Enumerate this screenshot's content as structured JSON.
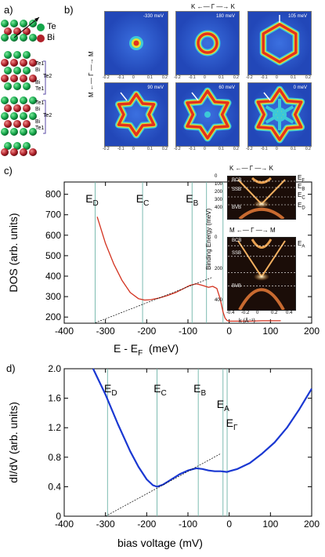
{
  "panel_labels": {
    "a": "a)",
    "b": "b)",
    "c": "c)",
    "d": "d)"
  },
  "crystal": {
    "legend": [
      {
        "label": "Te",
        "color": "#14a64a"
      },
      {
        "label": "Bi",
        "color": "#b0212a"
      }
    ],
    "layer_groups": [
      [
        "Te1",
        "Bi",
        "Te2",
        "Bi",
        "Te1"
      ],
      [
        "Te1",
        "Bi",
        "Te2",
        "Bi",
        "Te1"
      ]
    ]
  },
  "maps": {
    "axis_top": {
      "left": "K",
      "center": "Γ",
      "right": "K"
    },
    "axis_left": {
      "top": "M",
      "center": "Γ",
      "bottom": "M"
    },
    "tiles": [
      {
        "energy": "-330 meV"
      },
      {
        "energy": "180 meV"
      },
      {
        "energy": "105 meV"
      },
      {
        "energy": "90 meV"
      },
      {
        "energy": "60 meV"
      },
      {
        "energy": "0 meV"
      }
    ],
    "ticks": [
      "-0.2",
      "-0.1",
      "0",
      "0.1",
      "0.2"
    ]
  },
  "arpes": {
    "top": {
      "axis_left": "K",
      "axis_center": "Γ",
      "axis_right": "K",
      "labels": [
        "BCB",
        "SSB",
        "BVB"
      ],
      "energies": [
        "E_F",
        "E_B",
        "E_C",
        "E_D"
      ],
      "y_ticks": [
        "0",
        "100",
        "200",
        "300",
        "400"
      ]
    },
    "bottom": {
      "axis_left": "M",
      "axis_center": "Γ",
      "axis_right": "M",
      "labels": [
        "BCB",
        "SSB",
        "BVB"
      ],
      "energies": [
        "E_A"
      ],
      "y_ticks": [
        "0",
        "200",
        "400"
      ],
      "x_ticks": [
        "-0.4",
        "-0.2",
        "0",
        "0.2",
        "0.4"
      ],
      "xlabel": "k (Å⁻¹)"
    },
    "ylabel": "Binding Energy (meV)"
  },
  "chart_data": [
    {
      "type": "line",
      "title": "",
      "xlabel": "E - E_F  (meV)",
      "ylabel": "DOS (arb. units)",
      "xlim": [
        -400,
        200
      ],
      "ylim": [
        170,
        860
      ],
      "x_ticks": [
        "-400",
        "-300",
        "-200",
        "-100",
        "0",
        "100",
        "200"
      ],
      "y_ticks": [
        "200",
        "300",
        "400",
        "500",
        "600",
        "700",
        "800"
      ],
      "vlines": [
        {
          "label": "E_D",
          "x": -325
        },
        {
          "label": "E_C",
          "x": -210
        },
        {
          "label": "E_B",
          "x": -90
        },
        {
          "label": "",
          "x": -55
        },
        {
          "label": "",
          "x": -15
        }
      ],
      "series": [
        {
          "color": "#d3321f",
          "x": [
            -320,
            -300,
            -280,
            -260,
            -240,
            -220,
            -205,
            -190,
            -170,
            -150,
            -130,
            -110,
            -95,
            -80,
            -65,
            -50,
            -40,
            -30,
            -22,
            -15,
            -10,
            -5,
            0,
            20,
            50,
            80,
            110,
            125
          ],
          "y": [
            690,
            560,
            460,
            380,
            320,
            290,
            283,
            285,
            293,
            305,
            320,
            340,
            355,
            363,
            355,
            345,
            350,
            340,
            290,
            225,
            195,
            183,
            180,
            180,
            180,
            182,
            182,
            182
          ]
        },
        {
          "style": "dashed",
          "x": [
            -325,
            -40
          ],
          "y": [
            172,
            395
          ]
        }
      ]
    },
    {
      "type": "line",
      "title": "",
      "xlabel": "bias voltage (mV)",
      "ylabel": "dI/dV (arb. units)",
      "xlim": [
        -400,
        200
      ],
      "ylim": [
        0,
        2.0
      ],
      "x_ticks": [
        "-400",
        "-300",
        "-200",
        "-100",
        "0",
        "100",
        "200"
      ],
      "y_ticks": [
        "0",
        "0.4",
        "0.8",
        "1.2",
        "1.6",
        "2.0"
      ],
      "vlines": [
        {
          "label": "E_D",
          "x": -295
        },
        {
          "label": "E_C",
          "x": -175
        },
        {
          "label": "E_B",
          "x": -75
        },
        {
          "label": "E_A",
          "x": -15
        },
        {
          "label": "E_Γ",
          "x": -5
        }
      ],
      "series": [
        {
          "color": "#1a38d2",
          "x": [
            -330,
            -300,
            -270,
            -240,
            -220,
            -200,
            -185,
            -175,
            -160,
            -140,
            -120,
            -100,
            -80,
            -65,
            -50,
            -35,
            -20,
            -5,
            0,
            20,
            50,
            80,
            110,
            140,
            170,
            200
          ],
          "y": [
            2.0,
            1.65,
            1.25,
            0.88,
            0.67,
            0.5,
            0.42,
            0.4,
            0.43,
            0.5,
            0.57,
            0.62,
            0.65,
            0.64,
            0.62,
            0.61,
            0.61,
            0.6,
            0.61,
            0.64,
            0.72,
            0.85,
            1.0,
            1.2,
            1.45,
            1.73
          ]
        },
        {
          "style": "dashed",
          "x": [
            -300,
            -20
          ],
          "y": [
            0.0,
            0.85
          ]
        }
      ]
    }
  ]
}
